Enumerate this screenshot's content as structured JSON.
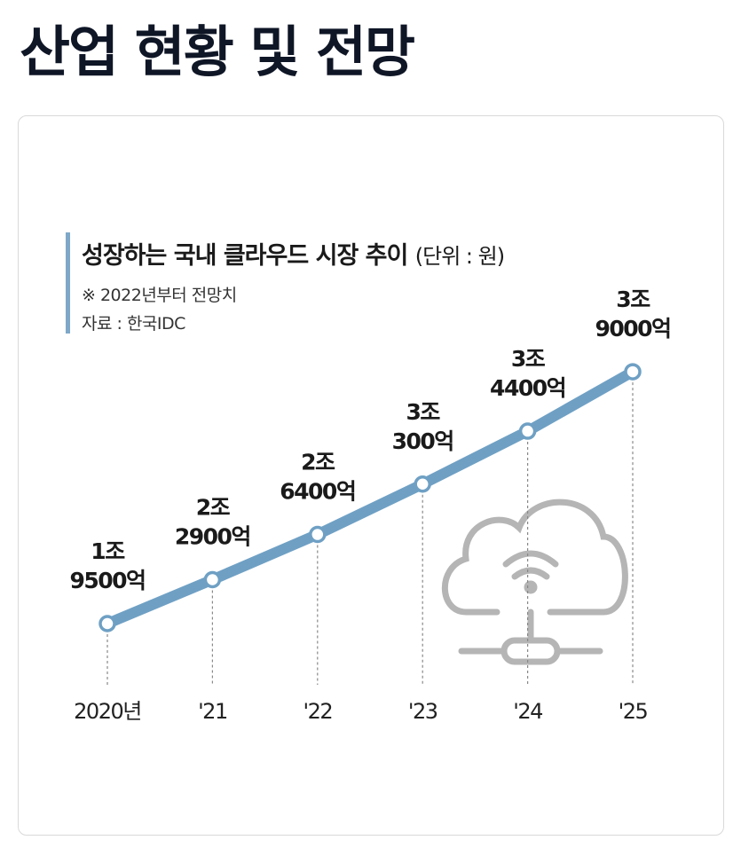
{
  "header": {
    "title": "산업 현황 및 전망"
  },
  "chart_data": {
    "type": "line",
    "title": "성장하는 국내 클라우드 시장 추이",
    "unit": "(단위 : 원)",
    "note": "※ 2022년부터 전망치",
    "source": "자료 : 한국IDC",
    "categories": [
      "2020년",
      "'21",
      "'22",
      "'23",
      "'24",
      "'25"
    ],
    "values": [
      19500,
      22900,
      26400,
      30300,
      34400,
      39000
    ],
    "value_unit": "억원",
    "data_labels": [
      [
        "1조",
        "9500억"
      ],
      [
        "2조",
        "2900억"
      ],
      [
        "2조",
        "6400억"
      ],
      [
        "3조",
        "300억"
      ],
      [
        "3조",
        "4400억"
      ],
      [
        "3조",
        "9000억"
      ]
    ],
    "line_color": "#6fa0c4",
    "grid": false,
    "legend": "none"
  }
}
